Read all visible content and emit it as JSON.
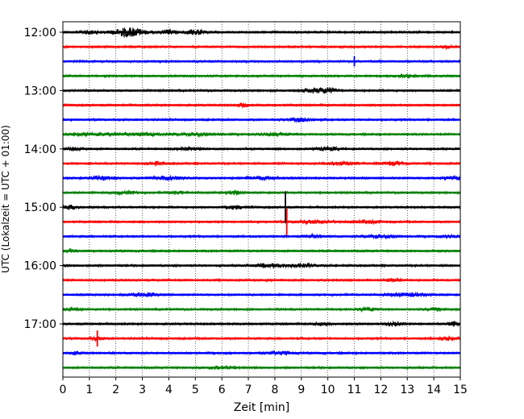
{
  "chart_data": {
    "type": "line",
    "chart_kind": "helicorder",
    "xlabel": "Zeit  [min]",
    "ylabel": "UTC (Lokalzeit = UTC + 01:00)",
    "xlim": [
      0,
      15
    ],
    "x_ticks": [
      "0",
      "1",
      "2",
      "3",
      "4",
      "5",
      "6",
      "7",
      "8",
      "9",
      "10",
      "11",
      "12",
      "13",
      "14",
      "15"
    ],
    "y_ticks": [
      {
        "label": "12:00",
        "trace": 0
      },
      {
        "label": "13:00",
        "trace": 4
      },
      {
        "label": "14:00",
        "trace": 8
      },
      {
        "label": "15:00",
        "trace": 12
      },
      {
        "label": "16:00",
        "trace": 16
      },
      {
        "label": "17:00",
        "trace": 20
      }
    ],
    "trace_interval_min": 15,
    "trace_count": 24,
    "grid": "vertical dotted at each minute",
    "colors": [
      "#000000",
      "#ff0000",
      "#0000ff",
      "#008000"
    ],
    "traces": [
      {
        "bursts": [
          [
            1.0,
            0.35,
            0.3
          ],
          [
            2.5,
            0.9,
            0.6
          ],
          [
            4.0,
            0.4,
            0.3
          ],
          [
            5.0,
            0.5,
            0.35
          ]
        ],
        "spikes": []
      },
      {
        "bursts": [
          [
            14.5,
            0.3,
            0.15
          ]
        ],
        "spikes": []
      },
      {
        "bursts": [],
        "spikes": [
          [
            11.0,
            0.35
          ]
        ]
      },
      {
        "bursts": [
          [
            13.0,
            0.3,
            0.3
          ]
        ],
        "spikes": []
      },
      {
        "bursts": [
          [
            9.5,
            0.35,
            0.6
          ],
          [
            10.0,
            0.4,
            0.3
          ]
        ],
        "spikes": []
      },
      {
        "bursts": [
          [
            6.8,
            0.3,
            0.2
          ]
        ],
        "spikes": []
      },
      {
        "bursts": [
          [
            9.0,
            0.3,
            0.5
          ]
        ],
        "spikes": []
      },
      {
        "bursts": [
          [
            1.0,
            0.25,
            1.0
          ],
          [
            3.0,
            0.25,
            0.8
          ],
          [
            5.0,
            0.25,
            0.8
          ],
          [
            8.0,
            0.25,
            0.8
          ]
        ],
        "spikes": []
      },
      {
        "bursts": [
          [
            0.4,
            0.3,
            0.3
          ],
          [
            4.8,
            0.3,
            0.4
          ],
          [
            10.0,
            0.3,
            0.5
          ]
        ],
        "spikes": []
      },
      {
        "bursts": [
          [
            3.5,
            0.3,
            0.4
          ],
          [
            10.5,
            0.3,
            0.5
          ],
          [
            12.5,
            0.3,
            0.5
          ]
        ],
        "spikes": []
      },
      {
        "bursts": [
          [
            1.5,
            0.3,
            0.5
          ],
          [
            4.0,
            0.3,
            0.6
          ],
          [
            7.5,
            0.3,
            0.6
          ],
          [
            14.8,
            0.35,
            0.4
          ]
        ],
        "spikes": []
      },
      {
        "bursts": [
          [
            2.3,
            0.3,
            0.4
          ],
          [
            4.3,
            0.3,
            0.3
          ],
          [
            6.5,
            0.3,
            0.3
          ]
        ],
        "spikes": []
      },
      {
        "bursts": [
          [
            0.3,
            0.35,
            0.3
          ],
          [
            6.5,
            0.3,
            0.4
          ]
        ],
        "spikes": [
          [
            8.4,
            1.1
          ]
        ]
      },
      {
        "bursts": [
          [
            9.5,
            0.3,
            0.6
          ],
          [
            11.5,
            0.3,
            0.5
          ]
        ],
        "spikes": [
          [
            8.45,
            0.9
          ]
        ]
      },
      {
        "bursts": [
          [
            9.5,
            0.3,
            0.4
          ],
          [
            12.0,
            0.3,
            0.6
          ],
          [
            14.5,
            0.3,
            0.4
          ]
        ],
        "spikes": []
      },
      {
        "bursts": [
          [
            0.3,
            0.3,
            0.2
          ]
        ],
        "spikes": []
      },
      {
        "bursts": [
          [
            7.8,
            0.35,
            0.6
          ],
          [
            9.0,
            0.3,
            0.5
          ]
        ],
        "spikes": []
      },
      {
        "bursts": [
          [
            12.5,
            0.3,
            0.3
          ]
        ],
        "spikes": []
      },
      {
        "bursts": [
          [
            3.0,
            0.3,
            0.6
          ],
          [
            13.0,
            0.3,
            0.8
          ]
        ],
        "spikes": []
      },
      {
        "bursts": [
          [
            0.4,
            0.3,
            0.3
          ],
          [
            11.5,
            0.3,
            0.4
          ],
          [
            14.0,
            0.3,
            0.3
          ]
        ],
        "spikes": []
      },
      {
        "bursts": [
          [
            9.8,
            0.3,
            0.3
          ],
          [
            12.5,
            0.3,
            0.3
          ],
          [
            14.8,
            0.35,
            0.3
          ]
        ],
        "spikes": []
      },
      {
        "bursts": [
          [
            1.3,
            0.3,
            0.3
          ],
          [
            14.5,
            0.3,
            0.4
          ]
        ],
        "spikes": [
          [
            1.3,
            0.55
          ]
        ]
      },
      {
        "bursts": [
          [
            0.5,
            0.35,
            0.2
          ],
          [
            8.2,
            0.3,
            0.5
          ]
        ],
        "spikes": []
      },
      {
        "bursts": [
          [
            6.0,
            0.25,
            0.6
          ]
        ],
        "spikes": []
      }
    ]
  }
}
